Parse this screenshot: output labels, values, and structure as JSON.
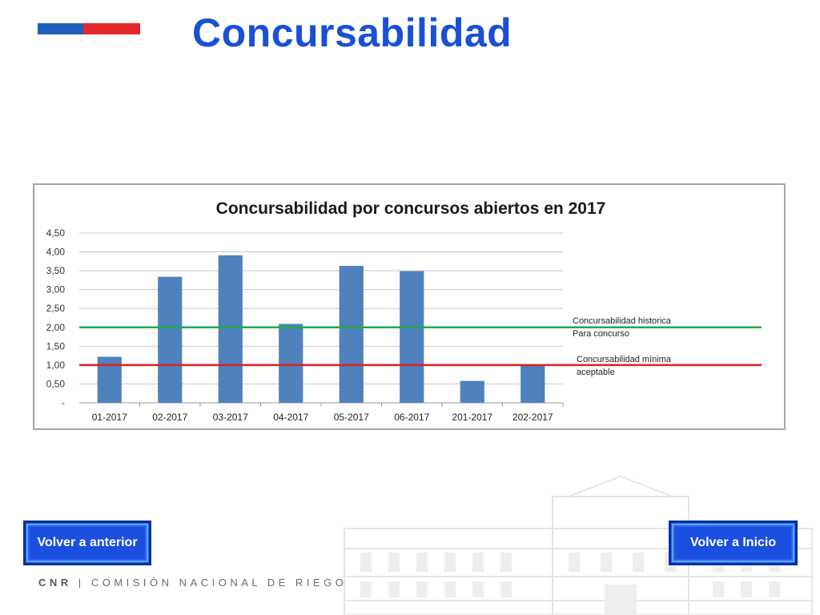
{
  "slide": {
    "title": "Concursabilidad",
    "flag_colors": [
      "#1f5fbf",
      "#e5282e"
    ],
    "title_color": "#1a4fd6"
  },
  "buttons": {
    "back_label": "Volver a anterior",
    "home_label": "Volver a Inicio",
    "color": "#1b4fe0"
  },
  "footer": {
    "brand": "CNR",
    "separator": "|",
    "org": "COMISIÓN NACIONAL DE RIEGO"
  },
  "chart_data": {
    "type": "bar",
    "title": "Concursabilidad por concursos abiertos en 2017",
    "categories": [
      "01-2017",
      "02-2017",
      "03-2017",
      "04-2017",
      "05-2017",
      "06-2017",
      "201-2017",
      "202-2017"
    ],
    "values": [
      1.22,
      3.34,
      3.91,
      2.09,
      3.63,
      3.49,
      0.58,
      0.98
    ],
    "bar_color": "#4f81bd",
    "ylim": [
      0,
      4.5
    ],
    "yticks": [
      0,
      0.5,
      1,
      1.5,
      2,
      2.5,
      3,
      3.5,
      4,
      4.5
    ],
    "ytick_labels": [
      "-",
      "0,50",
      "1,00",
      "1,50",
      "2,00",
      "2,50",
      "3,00",
      "3,50",
      "4,00",
      "4,50"
    ],
    "grid": true,
    "reference_lines": [
      {
        "value": 2.0,
        "color": "#1faa4a",
        "label_lines": [
          "Concursabilidad historica",
          "Para concurso"
        ]
      },
      {
        "value": 1.0,
        "color": "#e0201f",
        "label_lines": [
          "Concursabilidad mínima",
          "aceptable"
        ]
      }
    ]
  }
}
